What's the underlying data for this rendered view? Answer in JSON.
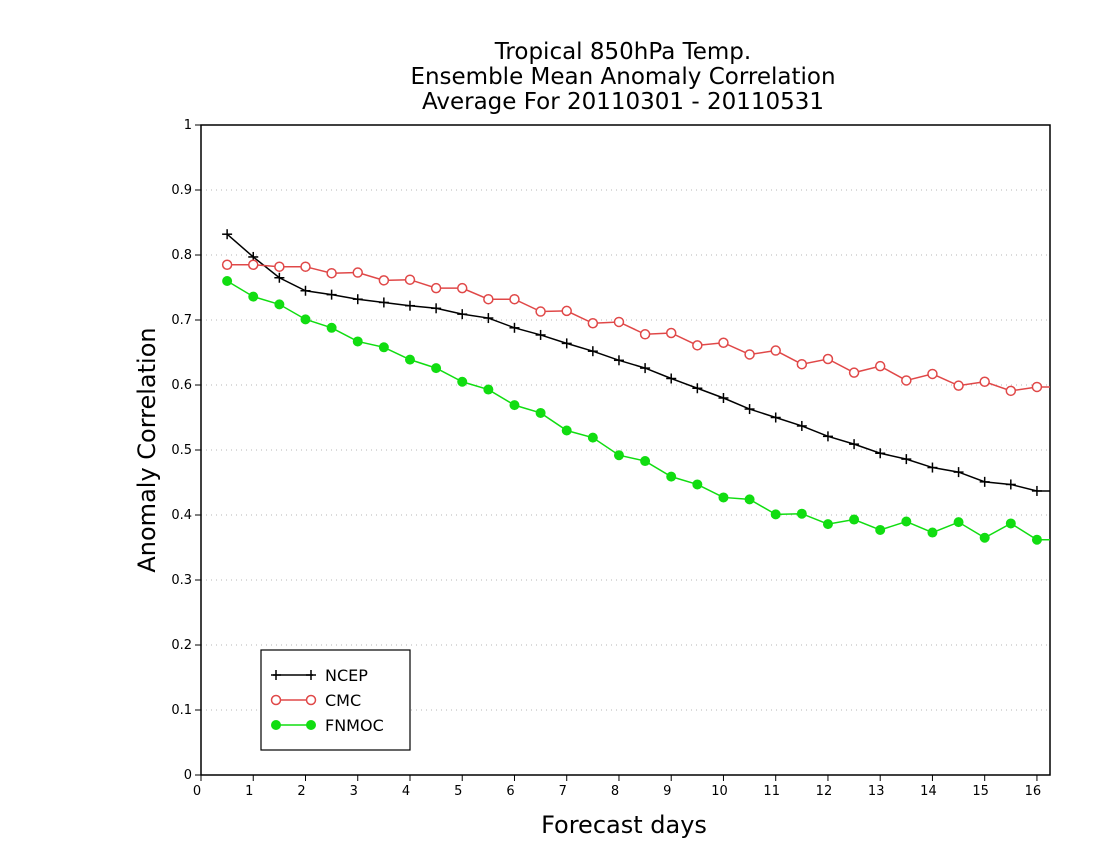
{
  "chart_data": {
    "type": "line",
    "title": [
      "Tropical 850hPa Temp.",
      "Ensemble Mean Anomaly Correlation",
      "Average For 20110301 - 20110531"
    ],
    "xlabel": "Forecast days",
    "ylabel": "Anomaly Correlation",
    "xlim": [
      0,
      16.25
    ],
    "ylim": [
      0,
      1
    ],
    "xticks": [
      0,
      1,
      2,
      3,
      4,
      5,
      6,
      7,
      8,
      9,
      10,
      11,
      12,
      13,
      14,
      15,
      16
    ],
    "yticks": [
      0,
      0.1,
      0.2,
      0.3,
      0.4,
      0.5,
      0.6,
      0.7,
      0.8,
      0.9,
      1
    ],
    "grid": true,
    "legend_position": "bottom-left",
    "x": [
      0.5,
      1,
      1.5,
      2,
      2.5,
      3,
      3.5,
      4,
      4.5,
      5,
      5.5,
      6,
      6.5,
      7,
      7.5,
      8,
      8.5,
      9,
      9.5,
      10,
      10.5,
      11,
      11.5,
      12,
      12.5,
      13,
      13.5,
      14,
      14.5,
      15,
      15.5,
      16,
      16.25
    ],
    "series": [
      {
        "name": "NCEP",
        "color": "#000000",
        "marker": "plus",
        "values": [
          0.832,
          0.797,
          0.765,
          0.745,
          0.739,
          0.732,
          0.727,
          0.722,
          0.718,
          0.709,
          0.703,
          0.688,
          0.677,
          0.664,
          0.652,
          0.638,
          0.626,
          0.61,
          0.595,
          0.58,
          0.563,
          0.55,
          0.537,
          0.521,
          0.509,
          0.495,
          0.486,
          0.473,
          0.466,
          0.451,
          0.447,
          0.437,
          0.437
        ]
      },
      {
        "name": "CMC",
        "color": "#e04848",
        "marker": "open-circle",
        "values": [
          0.785,
          0.785,
          0.782,
          0.782,
          0.772,
          0.773,
          0.761,
          0.762,
          0.749,
          0.749,
          0.732,
          0.732,
          0.713,
          0.714,
          0.695,
          0.697,
          0.678,
          0.68,
          0.661,
          0.665,
          0.647,
          0.653,
          0.632,
          0.64,
          0.619,
          0.629,
          0.607,
          0.617,
          0.599,
          0.605,
          0.591,
          0.597,
          0.597
        ]
      },
      {
        "name": "FNMOC",
        "color": "#11dd11",
        "marker": "filled-circle",
        "values": [
          0.76,
          0.736,
          0.724,
          0.701,
          0.688,
          0.667,
          0.658,
          0.639,
          0.626,
          0.605,
          0.593,
          0.569,
          0.557,
          0.53,
          0.519,
          0.492,
          0.483,
          0.459,
          0.447,
          0.427,
          0.424,
          0.401,
          0.402,
          0.386,
          0.393,
          0.377,
          0.39,
          0.373,
          0.389,
          0.365,
          0.387,
          0.362,
          0.362
        ]
      }
    ]
  }
}
